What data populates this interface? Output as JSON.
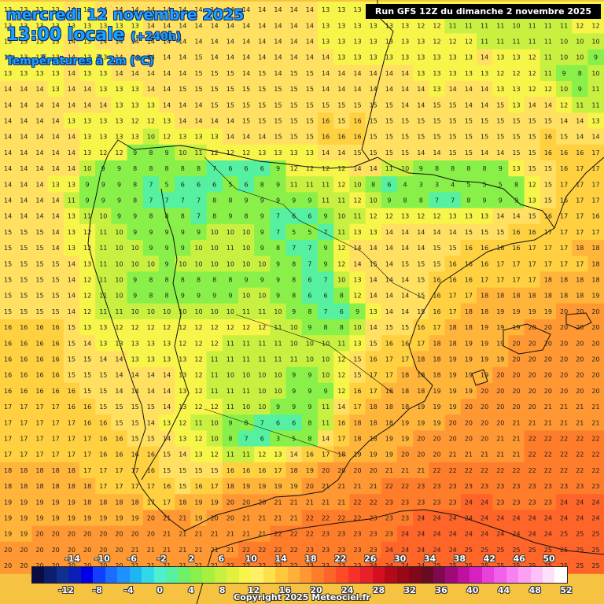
{
  "header": {
    "date": "mercredi 12 novembre 2025",
    "time": "13:00 locale",
    "lead": "(+240h)",
    "variable": "Températures à 2m (°C)",
    "run": "Run GFS 12Z du dimanche 2 novembre 2025"
  },
  "copyright": "Copyright 2025 Meteociel.fr",
  "legend": {
    "top_ticks": [
      "-14",
      "-10",
      "-6",
      "-2",
      "2",
      "6",
      "10",
      "14",
      "18",
      "22",
      "26",
      "30",
      "34",
      "38",
      "42",
      "46",
      "50"
    ],
    "bottom_ticks": [
      "-12",
      "-8",
      "-4",
      "0",
      "4",
      "8",
      "12",
      "16",
      "20",
      "24",
      "28",
      "32",
      "36",
      "40",
      "44",
      "48",
      "52"
    ],
    "colors": [
      "#0b0b45",
      "#0c1f6e",
      "#10308f",
      "#0a1fb5",
      "#0000e6",
      "#1040ff",
      "#1c6cff",
      "#1e90ff",
      "#1eb6f0",
      "#30d8e8",
      "#4ef0d0",
      "#55f0a0",
      "#6ef06a",
      "#88f048",
      "#a8f040",
      "#c8f040",
      "#e4f03e",
      "#f8f54a",
      "#fff067",
      "#ffe04a",
      "#ffc83c",
      "#ffb03a",
      "#ff9832",
      "#ff7d2a",
      "#ff6428",
      "#ff4a28",
      "#f8302a",
      "#e8202a",
      "#d40f20",
      "#b40a18",
      "#980818",
      "#800818",
      "#680b20",
      "#800a50",
      "#a00a78",
      "#c010a0",
      "#d820c0",
      "#e840d8",
      "#f060e8",
      "#f880f0",
      "#fca0f4",
      "#fec0f8",
      "#ffe0fc",
      "#ffffff"
    ]
  },
  "field": {
    "description_values": "2m temperature grid values printed on map, degrees C",
    "rows": [
      "13 13 13 13 14 13 14 14 14 14 14 14 14 14 14 14 14 14 14 14 13 13 13 13 13 13 12 12 12 12 12 13 13 13 13 13 13 12",
      "13 13 13 13 13 13 13 13 13 14 14 14 14 14 14 14 14 14 14 14 13 13 13 13 13 13 12 12 11 11 11 11 10 11 11 11 12 12",
      "13 13 13 13 14 13 14 14 14 14 14 14 14 14 14 14 14 14 14 14 13 13 13 13 13 13 13 12 12 12 11 11 11 11 11 10 10 10",
      "13 13 13 13 14 13 13 14 14 14 14 14 15 14 14 14 14 14 14 14 14 13 13 13 13 13 13 13 13 13 14 13 13 12 11 10 10 9",
      "13 13 13 13 14 13 13 14 14 14 14 14 15 15 15 14 15 14 15 15 14 14 14 14 14 14 13 13 13 13 13 12 12 12 11 9 8 10",
      "14 14 14 13 14 14 13 13 13 14 14 15 15 15 15 15 15 15 15 15 14 14 14 14 14 14 14 13 14 14 14 13 13 12 12 10 9 11",
      "14 14 14 14 14 14 14 13 13 13 14 14 14 15 15 15 15 15 15 15 15 15 15 15 15 14 14 15 15 14 14 15 13 14 14 12 11 11",
      "14 14 14 14 13 13 13 13 12 12 13 14 14 14 14 15 15 15 15 15 16 15 16 15 15 15 15 15 15 15 15 15 15 15 15 14 14 13",
      "14 14 14 14 14 13 13 13 13 10 12 13 13 13 14 14 14 15 15 15 16 16 16 15 15 15 15 15 15 15 15 15 15 15 16 15 14 14",
      "14 14 14 14 14 13 12 12 9 8 9 10 11 12 12 12 13 13 13 13 14 14 15 15 15 15 14 14 15 15 14 14 15 15 16 16 16 17",
      "14 14 14 14 14 10 9 9 8 8 8 8 8 7 6 6 6 9 12 12 12 12 14 14 11 10 9 8 8 8 8 9 13 15 15 16 17 17",
      "14 14 14 13 13 9 9 9 8 7 5 6 6 6 5 6 8 9 11 11 11 12 10 8 6 4 3 3 4 5 5 5 8 12 15 17 17 17",
      "14 14 14 14 11 9 9 9 8 7 7 7 7 8 8 9 9 9 9 9 11 11 12 10 9 8 8 7 7 8 9 9 9 13 15 16 17 17",
      "14 14 14 14 13 11 10 9 9 8 8 8 7 8 9 8 9 7 6 6 9 10 11 12 12 13 12 12 13 13 13 14 14 15 16 17 17 16",
      "15 15 15 14 13 12 11 10 9 9 9 9 9 10 10 10 9 7 5 5 7 11 13 13 14 14 14 14 14 15 15 15 16 16 17 17 17 17",
      "15 15 15 14 13 12 11 10 10 9 9 9 10 10 11 10 9 8 7 7 9 12 14 14 14 14 14 15 15 16 16 16 16 17 17 17 18 18",
      "15 15 15 15 14 13 11 10 10 10 9 10 10 10 10 10 10 9 8 7 9 12 14 15 14 15 15 15 16 16 16 17 17 17 17 17 17 18",
      "15 15 15 15 14 12 11 10 9 8 8 8 8 8 8 9 9 9 8 6 7 10 13 14 14 14 15 16 16 16 17 17 17 17 18 18 18 18",
      "15 15 15 15 14 12 11 10 9 8 8 9 9 9 9 10 10 9 8 6 6 8 12 14 14 14 15 16 17 17 18 18 18 18 18 18 18 19",
      "15 15 15 15 14 12 11 11 10 10 10 10 10 10 10 11 11 10 9 8 7 6 9 13 14 14 15 16 17 18 18 19 19 19 19 20 20 20",
      "16 16 16 16 15 13 13 12 12 12 12 12 12 12 12 12 12 11 10 9 8 8 10 14 15 15 16 17 18 18 19 19 19 20 20 20 20 20",
      "16 16 16 16 15 14 13 13 13 13 13 12 12 12 11 11 11 11 10 10 10 11 13 15 16 16 17 18 18 19 19 19 20 20 20 20 20 20",
      "16 16 16 16 15 15 14 14 13 13 13 13 12 11 11 11 11 11 11 10 10 12 15 16 17 17 18 18 19 19 19 19 20 20 20 20 20 20",
      "16 16 16 16 15 15 15 14 14 14 14 13 12 11 10 10 10 10 9 9 10 12 15 17 17 18 18 18 19 19 19 20 20 20 20 20 20 20",
      "16 16 16 16 16 15 15 14 14 14 14 13 12 11 11 11 10 10 9 9 9 12 16 17 18 18 18 19 19 19 20 20 20 20 20 20 20 20",
      "17 17 17 17 16 16 15 15 15 15 14 13 12 12 11 10 10 9 9 9 11 14 17 18 18 18 19 19 19 20 20 20 20 20 21 21 21 21",
      "17 17 17 17 17 16 16 15 15 14 13 12 11 10 9 8 7 6 6 8 11 16 18 18 18 19 19 19 20 20 20 20 21 21 21 21 21 21",
      "17 17 17 17 17 17 16 16 15 15 14 13 12 10 8 7 6 3 5 8 14 17 18 18 19 19 20 20 20 20 20 21 21 22 22 22 22 22",
      "17 17 17 17 17 17 16 16 16 16 15 14 13 12 11 11 12 13 14 16 17 18 19 19 19 20 20 20 21 21 21 21 21 22 22 22 22 22",
      "18 18 18 18 18 17 17 17 17 16 15 15 15 15 16 16 16 17 18 19 20 20 20 20 21 21 21 22 22 22 22 22 22 22 22 22 22 22",
      "18 18 18 18 18 18 17 17 17 17 16 15 16 17 18 19 19 19 19 20 21 21 21 21 22 22 23 23 23 23 23 23 23 23 23 23 23 23",
      "19 19 19 19 19 18 18 18 18 17 17 18 19 19 20 20 20 21 21 21 21 21 22 22 23 23 23 23 23 24 24 23 23 23 23 24 24 24",
      "19 19 19 19 19 19 19 19 19 20 21 21 19 20 20 21 21 21 21 22 22 22 22 23 23 23 24 24 24 24 24 24 24 24 24 24 24 24",
      "19 19 20 20 20 20 20 20 20 20 21 21 21 21 21 21 21 22 22 22 23 23 23 23 23 24 24 24 24 24 24 24 24 24 24 25 25 25",
      "20 20 20 20 20 20 20 20 21 21 21 21 21 21 21 22 22 22 22 23 23 23 23 23 24 24 24 24 24 25 25 25 25 25 25 25 25 25",
      "20 20 20 20 20 20 20 20 21 21 21 21 21 21 22 22 22 22 22 23 23 23 23 24 24 24 24 25 25 25 25 25 25 25 25 25 25 25"
    ]
  }
}
